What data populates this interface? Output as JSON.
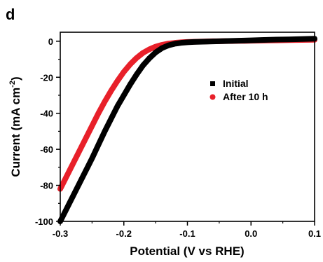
{
  "panel_label": "d",
  "colors": {
    "initial": "#000000",
    "after": "#e8202a",
    "axis": "#000000"
  },
  "chart_data": {
    "type": "line",
    "xlabel": "Potential (V vs RHE)",
    "ylabel": "Current (mA cm",
    "ylabel_sup": "-2",
    "ylabel_end": ")",
    "xlim": [
      -0.3,
      0.1
    ],
    "ylim": [
      -100,
      5
    ],
    "xticks": [
      -0.3,
      -0.2,
      -0.1,
      0.0,
      0.1
    ],
    "xtick_labels": [
      "-0.3",
      "-0.2",
      "-0.1",
      "0.0",
      "0.1"
    ],
    "yticks": [
      0,
      -20,
      -40,
      -60,
      -80,
      -100
    ],
    "ytick_labels": [
      "0",
      "-20",
      "-40",
      "-60",
      "-80",
      "-100"
    ],
    "legend_position": "right",
    "series": [
      {
        "name": "Initial",
        "marker": "square",
        "x": [
          -0.3,
          -0.29,
          -0.28,
          -0.27,
          -0.26,
          -0.25,
          -0.24,
          -0.23,
          -0.22,
          -0.21,
          -0.2,
          -0.19,
          -0.18,
          -0.17,
          -0.16,
          -0.15,
          -0.14,
          -0.13,
          -0.12,
          -0.11,
          -0.1,
          -0.09,
          -0.08,
          -0.07,
          -0.06,
          -0.05,
          -0.04,
          -0.03,
          -0.02,
          -0.01,
          0.0,
          0.02,
          0.04,
          0.06,
          0.08,
          0.1
        ],
        "y": [
          -100,
          -93,
          -86,
          -79,
          -72,
          -65,
          -57.5,
          -50,
          -43,
          -36,
          -30,
          -24,
          -18.5,
          -13.5,
          -9.5,
          -6.2,
          -3.8,
          -2.3,
          -1.4,
          -0.9,
          -0.6,
          -0.4,
          -0.3,
          -0.2,
          -0.1,
          0,
          0.1,
          0.2,
          0.3,
          0.4,
          0.5,
          0.7,
          0.9,
          1.0,
          1.2,
          1.4
        ]
      },
      {
        "name": "After 10 h",
        "marker": "circle",
        "x": [
          -0.3,
          -0.29,
          -0.28,
          -0.27,
          -0.26,
          -0.25,
          -0.24,
          -0.23,
          -0.22,
          -0.21,
          -0.2,
          -0.19,
          -0.18,
          -0.17,
          -0.16,
          -0.15,
          -0.14,
          -0.13,
          -0.12,
          -0.11,
          -0.1,
          -0.09,
          -0.08,
          -0.07,
          -0.06,
          -0.05,
          -0.04,
          -0.03,
          -0.02,
          -0.01,
          0.0,
          0.02,
          0.04,
          0.06,
          0.08,
          0.1
        ],
        "y": [
          -82,
          -75,
          -68,
          -61,
          -54,
          -47,
          -40,
          -33.5,
          -27.5,
          -22,
          -17,
          -12.8,
          -9.3,
          -6.5,
          -4.5,
          -3.0,
          -2.0,
          -1.3,
          -0.9,
          -0.6,
          -0.4,
          -0.3,
          -0.2,
          -0.1,
          0,
          0,
          0.1,
          0.1,
          0.2,
          0.2,
          0.3,
          0.4,
          0.5,
          0.6,
          0.7,
          0.8
        ]
      }
    ]
  }
}
